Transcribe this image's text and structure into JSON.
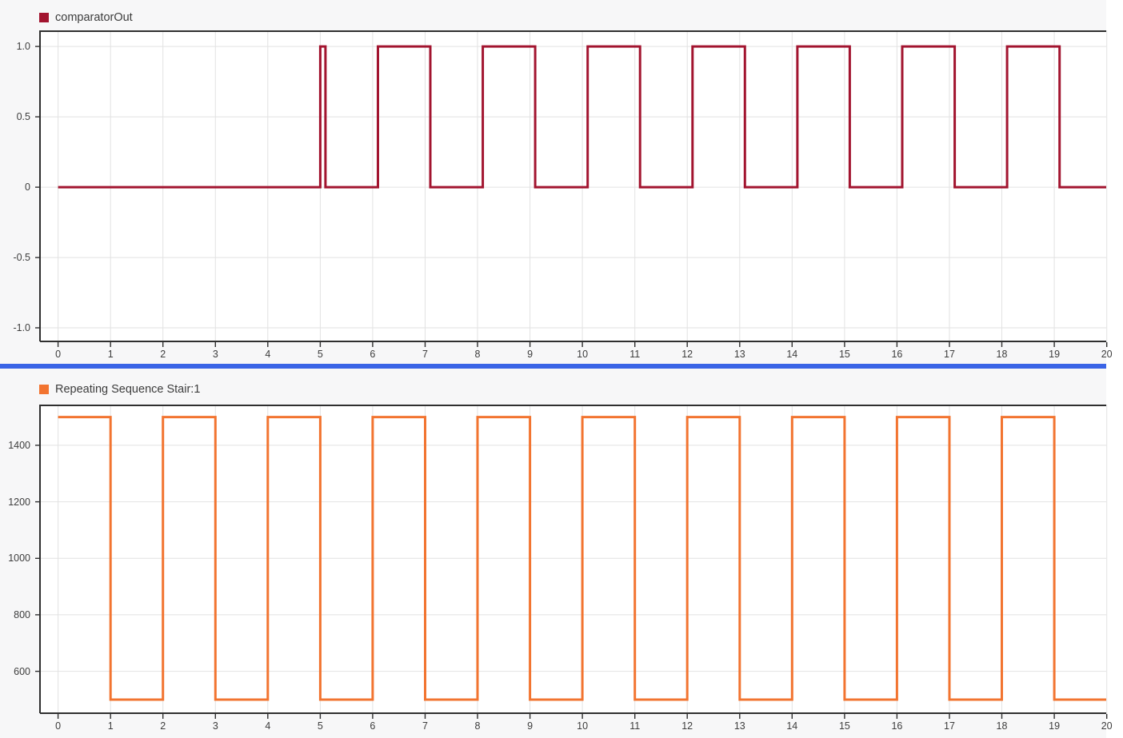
{
  "theme": {
    "background": "#F7F7F8",
    "plot_background": "#FFFFFF",
    "grid_color": "#E2E2E2",
    "axis_color": "#2F2F2F",
    "text_color": "#3D3D3D",
    "divider_color": "#3A64E6"
  },
  "chart_data": [
    {
      "type": "line",
      "step": true,
      "title": "comparatorOut",
      "xlim": [
        -0.36,
        19.99
      ],
      "ylim": [
        -1.102,
        1.114
      ],
      "x_ticks": [
        0,
        1,
        2,
        3,
        4,
        5,
        6,
        7,
        8,
        9,
        10,
        11,
        12,
        13,
        14,
        15,
        16,
        17,
        18,
        19,
        20
      ],
      "x_tick_labels": [
        "0",
        "1",
        "2",
        "3",
        "4",
        "5",
        "6",
        "7",
        "8",
        "9",
        "10",
        "11",
        "12",
        "13",
        "14",
        "15",
        "16",
        "17",
        "18",
        "19",
        "20"
      ],
      "y_ticks": [
        1.0,
        0.5,
        0,
        -0.5,
        -1.0
      ],
      "y_tick_labels": [
        "1.0",
        "0.5",
        "0",
        "-0.5",
        "-1.0"
      ],
      "grid": true,
      "legend_position": "top-left",
      "series": [
        {
          "name": "comparatorOut",
          "color": "#A2142F",
          "line_width": 3,
          "steps": [
            [
              0,
              0
            ],
            [
              5,
              1
            ],
            [
              5.1,
              0
            ],
            [
              6.1,
              1
            ],
            [
              7.1,
              0
            ],
            [
              8.1,
              1
            ],
            [
              9.1,
              0
            ],
            [
              10.1,
              1
            ],
            [
              11.1,
              0
            ],
            [
              12.1,
              1
            ],
            [
              13.1,
              0
            ],
            [
              14.1,
              1
            ],
            [
              15.1,
              0
            ],
            [
              16.1,
              1
            ],
            [
              17.1,
              0
            ],
            [
              18.1,
              1
            ],
            [
              19.1,
              0
            ]
          ],
          "end_t": 19.99
        }
      ]
    },
    {
      "type": "line",
      "step": true,
      "title": "Repeating Sequence Stair:1",
      "xlim": [
        -0.36,
        19.99
      ],
      "ylim": [
        449,
        1544
      ],
      "x_ticks": [
        0,
        1,
        2,
        3,
        4,
        5,
        6,
        7,
        8,
        9,
        10,
        11,
        12,
        13,
        14,
        15,
        16,
        17,
        18,
        19,
        20
      ],
      "x_tick_labels": [
        "0",
        "1",
        "2",
        "3",
        "4",
        "5",
        "6",
        "7",
        "8",
        "9",
        "10",
        "11",
        "12",
        "13",
        "14",
        "15",
        "16",
        "17",
        "18",
        "19",
        "20"
      ],
      "y_ticks": [
        1400,
        1200,
        1000,
        800,
        600
      ],
      "y_tick_labels": [
        "1400",
        "1200",
        "1000",
        "800",
        "600"
      ],
      "grid": true,
      "legend_position": "top-left",
      "series": [
        {
          "name": "Repeating Sequence Stair:1",
          "color": "#F27430",
          "line_width": 3,
          "steps": [
            [
              0,
              1500
            ],
            [
              1,
              500
            ],
            [
              2,
              1500
            ],
            [
              3,
              500
            ],
            [
              4,
              1500
            ],
            [
              5,
              500
            ],
            [
              6,
              1500
            ],
            [
              7,
              500
            ],
            [
              8,
              1500
            ],
            [
              9,
              500
            ],
            [
              10,
              1500
            ],
            [
              11,
              500
            ],
            [
              12,
              1500
            ],
            [
              13,
              500
            ],
            [
              14,
              1500
            ],
            [
              15,
              500
            ],
            [
              16,
              1500
            ],
            [
              17,
              500
            ],
            [
              18,
              1500
            ],
            [
              19,
              500
            ]
          ],
          "end_t": 19.99
        }
      ]
    }
  ]
}
